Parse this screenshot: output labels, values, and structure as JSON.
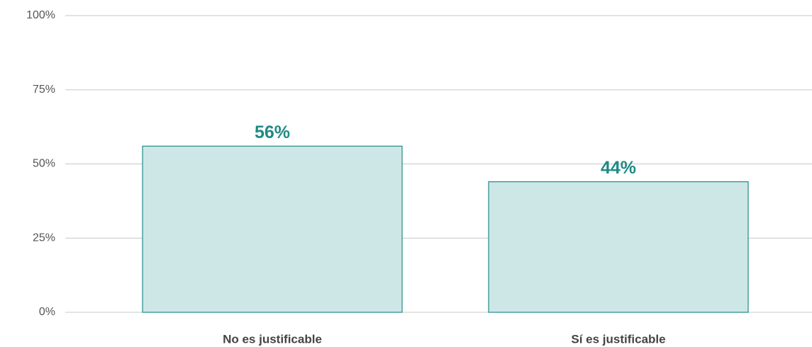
{
  "chart_data": {
    "type": "bar",
    "categories": [
      "No es justificable",
      "Sí es justificable"
    ],
    "values": [
      56,
      44
    ],
    "value_labels": [
      "56%",
      "44%"
    ],
    "color": "#cde7e6",
    "edge_color": "#1f8c88",
    "label_color": "#1f8a86",
    "ylim": [
      0,
      100
    ],
    "yticks": [
      {
        "value": 0,
        "label": "0%"
      },
      {
        "value": 25,
        "label": "25%"
      },
      {
        "value": 50,
        "label": "50%"
      },
      {
        "value": 75,
        "label": "75%"
      },
      {
        "value": 100,
        "label": "100%"
      }
    ],
    "grid": true
  }
}
